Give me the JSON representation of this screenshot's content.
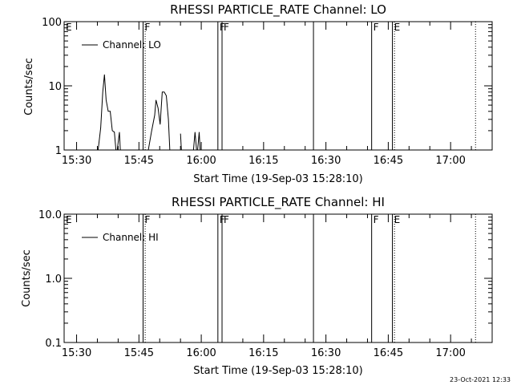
{
  "footer": {
    "timestamp": "23-Oct-2021 12:33"
  },
  "chart_data": [
    {
      "type": "line",
      "title": "RHESSI PARTICLE_RATE Channel: LO",
      "xlabel": "Start Time (19-Sep-03 15:28:10)",
      "ylabel": "Counts/sec",
      "yscale": "log",
      "ylim": [
        1,
        100
      ],
      "y_ticks": [
        1,
        10,
        100
      ],
      "y_tick_labels": [
        "1",
        "10",
        "100"
      ],
      "xlim": [
        "15:27",
        "17:10"
      ],
      "x_ticks": [
        "15:30",
        "15:45",
        "16:00",
        "16:15",
        "16:30",
        "16:45",
        "17:00"
      ],
      "grid": false,
      "legend_position": "top-left",
      "legend": [
        "Channel: LO"
      ],
      "flags": [
        {
          "label": "E",
          "time": "15:27",
          "line": "none"
        },
        {
          "label": "F",
          "time": "15:46",
          "line": "solid"
        },
        {
          "label": "F",
          "time": "16:04",
          "line": "solid"
        },
        {
          "label": "F",
          "time": "16:05",
          "line": "solid"
        },
        {
          "label": "F",
          "time": "16:41",
          "line": "solid"
        },
        {
          "label": "E",
          "time": "16:46",
          "line": "solid"
        }
      ],
      "event_lines": [
        {
          "time": "15:46.5",
          "style": "dotted"
        },
        {
          "time": "16:27",
          "style": "solid"
        },
        {
          "time": "16:46.5",
          "style": "dotted"
        },
        {
          "time": "17:06",
          "style": "dotted"
        }
      ],
      "series": [
        {
          "name": "Channel: LO",
          "segments": [
            [
              [
                "15:33",
                0.8
              ],
              [
                "15:35",
                0.8
              ],
              [
                "15:35.8",
                2.2
              ],
              [
                "15:36.3",
                8
              ],
              [
                "15:36.7",
                15
              ],
              [
                "15:37.1",
                6
              ],
              [
                "15:37.6",
                4
              ],
              [
                "15:38.1",
                4
              ],
              [
                "15:38.6",
                2
              ],
              [
                "15:39.1",
                1.9
              ],
              [
                "15:39.6",
                0.8
              ],
              [
                "15:40.3",
                1.9
              ],
              [
                "15:40.6",
                0.8
              ]
            ],
            [
              [
                "15:47",
                0.8
              ],
              [
                "15:48",
                1.9
              ],
              [
                "15:48.8",
                3.5
              ],
              [
                "15:49.1",
                6
              ],
              [
                "15:49.6",
                4.5
              ],
              [
                "15:50.1",
                2.5
              ],
              [
                "15:50.6",
                8
              ],
              [
                "15:51.1",
                8
              ],
              [
                "15:51.6",
                7
              ],
              [
                "15:52.1",
                3
              ],
              [
                "15:52.5",
                0.8
              ]
            ],
            [
              [
                "15:55",
                1.8
              ],
              [
                "15:55.3",
                0.8
              ]
            ],
            [
              [
                "15:58",
                0.8
              ],
              [
                "15:58.5",
                1.9
              ],
              [
                "15:59",
                0.8
              ],
              [
                "15:59.5",
                1.9
              ],
              [
                "15:59.8",
                0.8
              ]
            ]
          ]
        }
      ]
    },
    {
      "type": "line",
      "title": "RHESSI PARTICLE_RATE Channel: HI",
      "xlabel": "Start Time (19-Sep-03 15:28:10)",
      "ylabel": "Counts/sec",
      "yscale": "log",
      "ylim": [
        0.1,
        10
      ],
      "y_ticks": [
        0.1,
        1,
        10
      ],
      "y_tick_labels": [
        "0.1",
        "1.0",
        "10.0"
      ],
      "xlim": [
        "15:27",
        "17:10"
      ],
      "x_ticks": [
        "15:30",
        "15:45",
        "16:00",
        "16:15",
        "16:30",
        "16:45",
        "17:00"
      ],
      "grid": false,
      "legend_position": "top-left",
      "legend": [
        "Channel: HI"
      ],
      "flags": [
        {
          "label": "E",
          "time": "15:27",
          "line": "none"
        },
        {
          "label": "F",
          "time": "15:46",
          "line": "solid"
        },
        {
          "label": "F",
          "time": "16:04",
          "line": "solid"
        },
        {
          "label": "F",
          "time": "16:05",
          "line": "solid"
        },
        {
          "label": "F",
          "time": "16:41",
          "line": "solid"
        },
        {
          "label": "E",
          "time": "16:46",
          "line": "solid"
        }
      ],
      "event_lines": [
        {
          "time": "15:46.5",
          "style": "dotted"
        },
        {
          "time": "16:27",
          "style": "solid"
        },
        {
          "time": "16:46.5",
          "style": "dotted"
        },
        {
          "time": "17:06",
          "style": "dotted"
        }
      ],
      "series": [
        {
          "name": "Channel: HI",
          "segments": []
        }
      ]
    }
  ]
}
